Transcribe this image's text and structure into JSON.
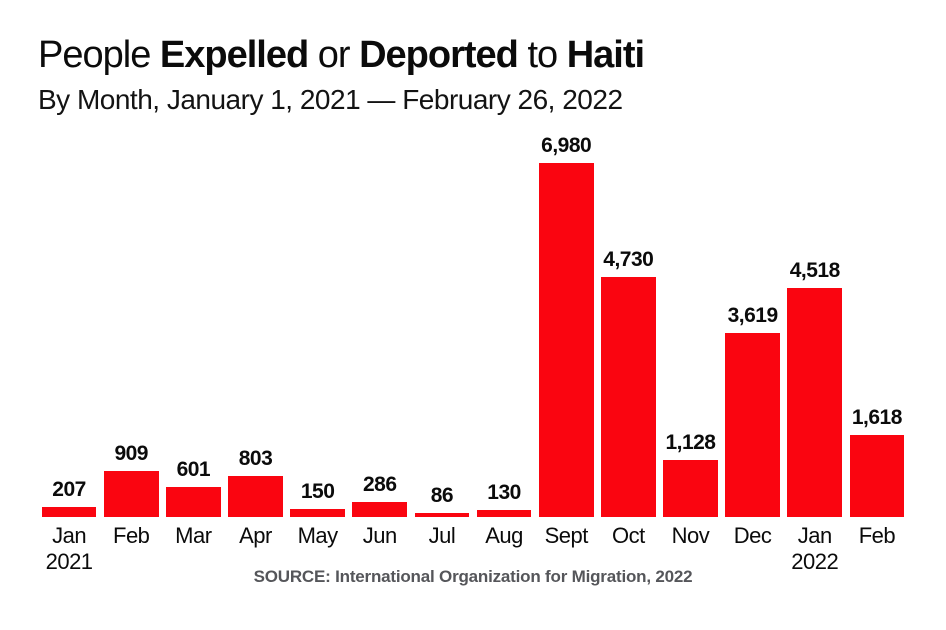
{
  "header": {
    "title_parts": [
      {
        "text": "People ",
        "bold": false
      },
      {
        "text": "Expelled",
        "bold": true
      },
      {
        "text": " or ",
        "bold": false
      },
      {
        "text": "Deported",
        "bold": true
      },
      {
        "text": " to ",
        "bold": false
      },
      {
        "text": "Haiti",
        "bold": true
      }
    ],
    "subtitle": "By Month, January 1, 2021 — February 26, 2022"
  },
  "chart_data": {
    "type": "bar",
    "title": "People Expelled or Deported to Haiti",
    "subtitle": "By Month, January 1, 2021 — February 26, 2022",
    "categories": [
      "Jan 2021",
      "Feb",
      "Mar",
      "Apr",
      "May",
      "Jun",
      "Jul",
      "Aug",
      "Sept",
      "Oct",
      "Nov",
      "Dec",
      "Jan 2022",
      "Feb"
    ],
    "values": [
      207,
      909,
      601,
      803,
      150,
      286,
      86,
      130,
      6980,
      4730,
      1128,
      3619,
      4518,
      1618
    ],
    "value_labels": [
      "207",
      "909",
      "601",
      "803",
      "150",
      "286",
      "86",
      "130",
      "6,980",
      "4,730",
      "1,128",
      "3,619",
      "4,518",
      "1,618"
    ],
    "ylim": [
      0,
      6980
    ],
    "xlabel": "",
    "ylabel": "",
    "grid": false,
    "legend": false,
    "data_labels_position": "above-bars"
  },
  "footer": {
    "source": "SOURCE: International Organization for Migration, 2022"
  },
  "colors": {
    "bar": "#fa0510",
    "text": "#0b0b0b",
    "source_text": "#55565a",
    "background": "#ffffff"
  }
}
